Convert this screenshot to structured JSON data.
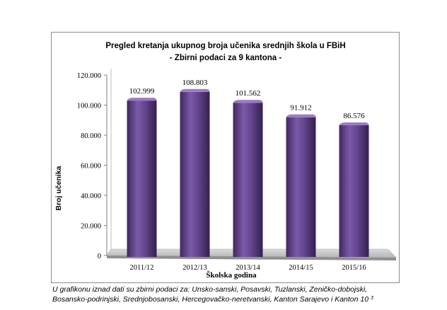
{
  "chart_data": {
    "type": "bar",
    "title": "Pregled kretanja ukupnog broja učenika srednjih škola u FBiH",
    "subtitle": "- Zbirni podaci za 9 kantona -",
    "xlabel": "Školska godina",
    "ylabel": "Broj učenika",
    "categories": [
      "2011/12",
      "2012/13",
      "2013/14",
      "2014/15",
      "2015/16"
    ],
    "values": [
      102999,
      108803,
      101562,
      91912,
      86576
    ],
    "value_labels": [
      "102.999",
      "108.803",
      "101.562",
      "91.912",
      "86.576"
    ],
    "yticks": [
      0,
      20000,
      40000,
      60000,
      80000,
      100000,
      120000
    ],
    "ytick_labels": [
      "0",
      "20.000",
      "40.000",
      "60.000",
      "80.000",
      "100.000",
      "120.000"
    ],
    "ylim": [
      0,
      120000
    ],
    "grid": false,
    "legend": "none",
    "colors": {
      "bar": "#5e3f86",
      "bar_light": "#8a6bb5",
      "bar_dark": "#3a2456",
      "floor": "#c9c9c9",
      "wall": "#ffffff"
    }
  },
  "footnote": {
    "line1": "U grafikonu iznad dati su zbirni podaci za:  Unsko-sanski,  Posavski,  Tuzlanski,  Zeničko-dobojski,",
    "line2": "Bosansko-podrinjski, Srednjobosanski, Hercegovačko-neretvanski, Kanton Sarajevo i Kanton 10",
    "superscript": "3"
  }
}
